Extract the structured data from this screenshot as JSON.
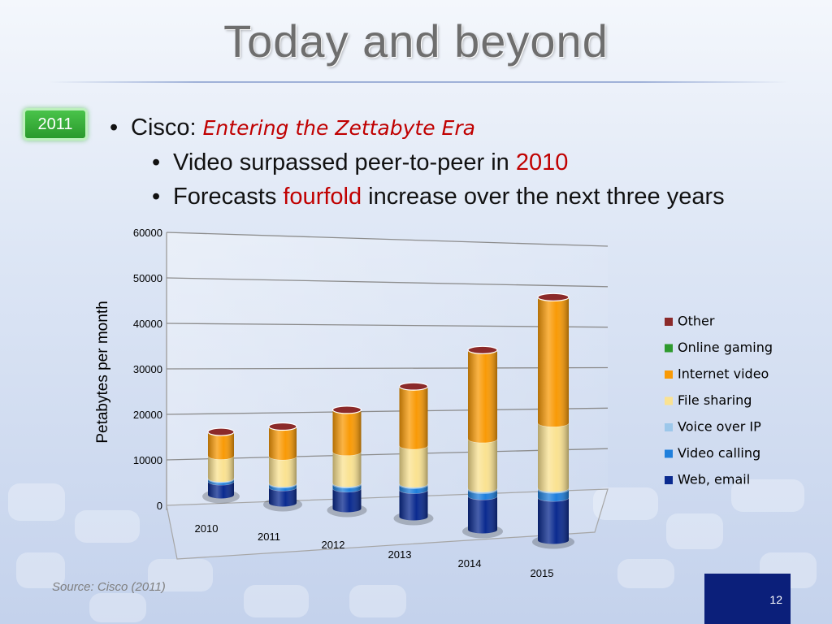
{
  "slide": {
    "title": "Today and beyond",
    "badge": "2011",
    "bullets": {
      "b1_prefix": "Cisco: ",
      "b1_emph": "Entering the Zettabyte Era",
      "b2_text": "Video surpassed peer-to-peer in ",
      "b2_emph": "2010",
      "b3_pre": "Forecasts ",
      "b3_emph": "fourfold",
      "b3_post": " increase over the next three years"
    },
    "source": "Source: Cisco (2011)",
    "page_number": "12"
  },
  "chart_data": {
    "type": "bar",
    "stacked": true,
    "style": "3d-cylinder",
    "ylabel": "Petabytes per month",
    "ylim": [
      0,
      60000
    ],
    "yticks": [
      0,
      10000,
      20000,
      30000,
      40000,
      50000,
      60000
    ],
    "categories": [
      "2010",
      "2011",
      "2012",
      "2013",
      "2014",
      "2015"
    ],
    "legend_position": "right",
    "series": [
      {
        "name": "Web, email",
        "color": "#0a2a8f",
        "values": [
          3000,
          3500,
          4500,
          6000,
          7500,
          9500
        ]
      },
      {
        "name": "Video calling",
        "color": "#1f7fdc",
        "values": [
          500,
          700,
          900,
          1100,
          1400,
          1800
        ]
      },
      {
        "name": "Voice over IP",
        "color": "#9cc7ea",
        "values": [
          200,
          200,
          250,
          250,
          300,
          300
        ]
      },
      {
        "name": "File sharing",
        "color": "#fae291",
        "values": [
          5000,
          6000,
          7000,
          8500,
          11000,
          14500
        ]
      },
      {
        "name": "Internet video",
        "color": "#f99a06",
        "values": [
          5300,
          6600,
          9350,
          13150,
          19800,
          28000
        ]
      },
      {
        "name": "Online gaming",
        "color": "#2e9a2e",
        "values": [
          0,
          0,
          0,
          0,
          0,
          0
        ]
      },
      {
        "name": "Other",
        "color": "#8b2a2a",
        "values": [
          0,
          0,
          0,
          0,
          0,
          0
        ]
      }
    ]
  }
}
